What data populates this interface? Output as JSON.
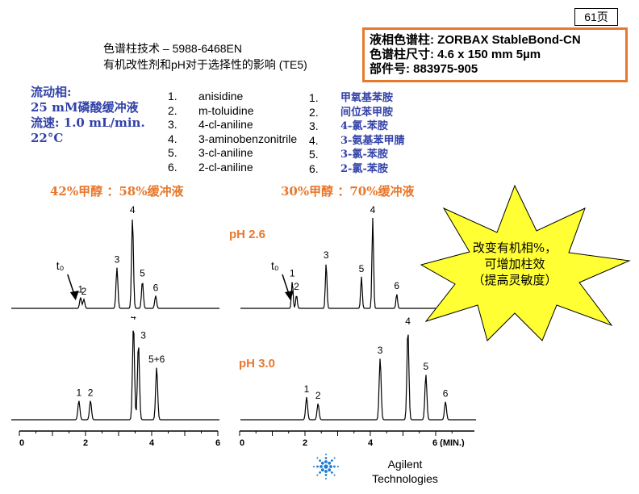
{
  "page": {
    "number": "61页"
  },
  "header": {
    "line1": "色谱柱技术 – 5988-6468EN",
    "line2": "有机改性剂和pH对于选择性的影响 (TE5)"
  },
  "column_info": {
    "line1": "液相色谱柱: ZORBAX StableBond-CN",
    "line2": "色谱柱尺寸: 4.6 x 150 mm 5µm",
    "line3": "部件号: 883975-905"
  },
  "mobile_phase": {
    "line1": "流动相:",
    "line2": "25 mM磷酸缓冲液",
    "line3": "流速: 1.0 mL/min.",
    "line4": "22°C"
  },
  "compounds_en": [
    {
      "num": "1.",
      "name": "anisidine"
    },
    {
      "num": "2.",
      "name": "m-toluidine"
    },
    {
      "num": "3.",
      "name": "4-cl-aniline"
    },
    {
      "num": "4.",
      "name": "3-aminobenzonitrile"
    },
    {
      "num": "5.",
      "name": "3-cl-aniline"
    },
    {
      "num": "6.",
      "name": "2-cl-aniline"
    }
  ],
  "compounds_zh": [
    {
      "num": "1.",
      "name": "甲氧基苯胺"
    },
    {
      "num": "2.",
      "name": "间位苯甲胺"
    },
    {
      "num": "3.",
      "name": "4-氯-苯胺"
    },
    {
      "num": "4.",
      "name": "3-氨基苯甲腈"
    },
    {
      "num": "5.",
      "name": "3-氯-苯胺"
    },
    {
      "num": "6.",
      "name": "2-氯-苯胺"
    }
  ],
  "conditions": {
    "left": "42%甲醇 ：58%缓冲液",
    "right": "30%甲醇 ：70%缓冲液"
  },
  "ph_labels": {
    "top": "pH 2.6",
    "bottom": "pH 3.0"
  },
  "callout": {
    "line1": "改变有机相%，",
    "line2": "可增加柱效",
    "line3": "（提高灵敏度）"
  },
  "logo": {
    "line1": "Agilent",
    "line2": "Technologies"
  },
  "colors": {
    "accent_orange": "#e8782c",
    "text_blue": "#3342a8",
    "star_yellow": "#ffff33"
  },
  "chart_data": [
    {
      "type": "line",
      "panel": "42% methanol, pH 2.6",
      "xlim": [
        0,
        6
      ],
      "t0": 1.8,
      "peaks": [
        {
          "label": "1",
          "time": 1.85,
          "height": 0.12
        },
        {
          "label": "2",
          "time": 1.95,
          "height": 0.1
        },
        {
          "label": "3",
          "time": 2.95,
          "height": 0.45
        },
        {
          "label": "4",
          "time": 3.42,
          "height": 1.0
        },
        {
          "label": "5",
          "time": 3.72,
          "height": 0.3
        },
        {
          "label": "6",
          "time": 4.12,
          "height": 0.14
        }
      ]
    },
    {
      "type": "line",
      "panel": "42% methanol, pH 3.0",
      "xlim": [
        0,
        6
      ],
      "x_ticks": [
        "0",
        "2",
        "4",
        "6"
      ],
      "peaks": [
        {
          "label": "1",
          "time": 1.8,
          "height": 0.2
        },
        {
          "label": "2",
          "time": 2.15,
          "height": 0.2
        },
        {
          "label": "4",
          "time": 3.45,
          "height": 1.0
        },
        {
          "label": "3",
          "time": 3.6,
          "height": 0.8
        },
        {
          "label": "5+6",
          "time": 4.15,
          "height": 0.55
        }
      ]
    },
    {
      "type": "line",
      "panel": "30% methanol, pH 2.6",
      "xlim": [
        0,
        6
      ],
      "t0": 1.6,
      "peaks": [
        {
          "label": "1",
          "time": 1.55,
          "height": 0.3
        },
        {
          "label": "2",
          "time": 1.7,
          "height": 0.15
        },
        {
          "label": "3",
          "time": 2.75,
          "height": 0.5
        },
        {
          "label": "5",
          "time": 4.0,
          "height": 0.35
        },
        {
          "label": "4",
          "time": 4.4,
          "height": 1.0
        },
        {
          "label": "6",
          "time": 5.25,
          "height": 0.16
        }
      ]
    },
    {
      "type": "line",
      "panel": "30% methanol, pH 3.0",
      "xlim": [
        0,
        6
      ],
      "x_ticks": [
        "0",
        "2",
        "4",
        "6 (MIN.)"
      ],
      "peaks": [
        {
          "label": "1",
          "time": 2.05,
          "height": 0.25
        },
        {
          "label": "2",
          "time": 2.4,
          "height": 0.18
        },
        {
          "label": "3",
          "time": 4.3,
          "height": 0.68
        },
        {
          "label": "4",
          "time": 5.15,
          "height": 1.0
        },
        {
          "label": "5",
          "time": 5.7,
          "height": 0.5
        },
        {
          "label": "6",
          "time": 6.3,
          "height": 0.2
        }
      ]
    }
  ]
}
